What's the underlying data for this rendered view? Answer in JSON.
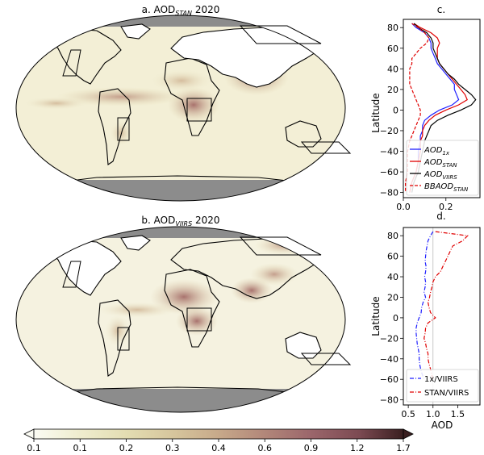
{
  "chart_data": [
    {
      "type": "heatmap",
      "title": "a. AOD",
      "title_sub": "STAN",
      "title_year": "2020",
      "boxes": [
        "North America (west)",
        "South America",
        "Central Africa",
        "Siberia",
        "Australia (south-east)"
      ]
    },
    {
      "type": "heatmap",
      "title": "b. AOD",
      "title_sub": "VIIRS",
      "title_year": "2020",
      "boxes": [
        "North America (west)",
        "South America",
        "Central Africa",
        "Siberia",
        "Australia (south-east)"
      ]
    },
    {
      "type": "line",
      "title": "c.",
      "xlabel": "",
      "ylabel": "Latitude",
      "xlim": [
        0,
        0.36
      ],
      "ylim": [
        -85,
        88
      ],
      "xticks": [
        "0.0",
        "0.2"
      ],
      "xtick_values": [
        0.0,
        0.2
      ],
      "yticks": [
        "80",
        "60",
        "40",
        "20",
        "0",
        "−20",
        "−40",
        "−60",
        "−80"
      ],
      "ytick_values": [
        80,
        60,
        40,
        20,
        0,
        -20,
        -40,
        -60,
        -80
      ],
      "legend_position": "lower-right",
      "series": [
        {
          "name": "AOD",
          "sub": "1x",
          "color": "#1f1fff",
          "dash": "solid",
          "lat": [
            84,
            80,
            75,
            70,
            65,
            60,
            55,
            50,
            45,
            40,
            35,
            30,
            25,
            20,
            15,
            10,
            5,
            0,
            -5,
            -10,
            -15,
            -20,
            -25,
            -30,
            -40,
            -50,
            -60,
            -70,
            -80
          ],
          "values": [
            0.04,
            0.06,
            0.1,
            0.12,
            0.13,
            0.13,
            0.14,
            0.15,
            0.16,
            0.18,
            0.2,
            0.22,
            0.24,
            0.24,
            0.25,
            0.26,
            0.23,
            0.17,
            0.13,
            0.1,
            0.09,
            0.09,
            0.08,
            0.08,
            0.07,
            0.07,
            0.06,
            0.04,
            0.03
          ]
        },
        {
          "name": "AOD",
          "sub": "STAN",
          "color": "#e00000",
          "dash": "solid",
          "lat": [
            84,
            80,
            75,
            70,
            65,
            60,
            55,
            50,
            45,
            40,
            35,
            30,
            25,
            20,
            15,
            10,
            5,
            0,
            -5,
            -10,
            -15,
            -20,
            -25,
            -30,
            -40,
            -50,
            -60,
            -70,
            -80
          ],
          "values": [
            0.05,
            0.08,
            0.13,
            0.16,
            0.17,
            0.16,
            0.16,
            0.16,
            0.17,
            0.19,
            0.21,
            0.23,
            0.25,
            0.27,
            0.29,
            0.3,
            0.26,
            0.2,
            0.15,
            0.12,
            0.1,
            0.09,
            0.09,
            0.08,
            0.08,
            0.07,
            0.06,
            0.04,
            0.03
          ]
        },
        {
          "name": "AOD",
          "sub": "VIIRS",
          "color": "#000000",
          "dash": "solid",
          "lat": [
            84,
            80,
            75,
            70,
            65,
            60,
            55,
            50,
            45,
            40,
            35,
            30,
            25,
            20,
            15,
            10,
            5,
            0,
            -5,
            -10,
            -15,
            -20,
            -25,
            -30,
            -40,
            -50,
            -60,
            -70,
            -80
          ],
          "values": [
            0.05,
            0.07,
            0.11,
            0.13,
            0.14,
            0.14,
            0.15,
            0.16,
            0.17,
            0.19,
            0.21,
            0.24,
            0.26,
            0.29,
            0.32,
            0.34,
            0.32,
            0.27,
            0.21,
            0.16,
            0.13,
            0.12,
            0.11,
            0.1,
            0.09,
            0.08,
            0.07,
            0.05,
            0.04
          ]
        },
        {
          "name": "BBAOD",
          "sub": "STAN",
          "color": "#e00000",
          "dash": "dashed",
          "lat": [
            84,
            80,
            75,
            70,
            65,
            60,
            55,
            50,
            45,
            40,
            35,
            30,
            25,
            20,
            15,
            10,
            5,
            0,
            -5,
            -10,
            -15,
            -20,
            -25,
            -30,
            -40,
            -50,
            -60,
            -70,
            -80
          ],
          "values": [
            0.04,
            0.07,
            0.1,
            0.12,
            0.11,
            0.08,
            0.06,
            0.04,
            0.04,
            0.03,
            0.03,
            0.03,
            0.03,
            0.04,
            0.05,
            0.06,
            0.07,
            0.08,
            0.08,
            0.07,
            0.06,
            0.05,
            0.04,
            0.03,
            0.02,
            0.02,
            0.02,
            0.01,
            0.01
          ]
        }
      ]
    },
    {
      "type": "line",
      "title": "d.",
      "xlabel": "AOD",
      "ylabel": "Latitude",
      "xlim": [
        0.4,
        1.95
      ],
      "ylim": [
        -85,
        88
      ],
      "xticks": [
        "0.5",
        "1.0",
        "1.5"
      ],
      "xtick_values": [
        0.5,
        1.0,
        1.5
      ],
      "yticks": [
        "80",
        "60",
        "40",
        "20",
        "0",
        "−20",
        "−40",
        "−60",
        "−80"
      ],
      "ytick_values": [
        80,
        60,
        40,
        20,
        0,
        -20,
        -40,
        -60,
        -80
      ],
      "reference_line": 1.0,
      "legend_position": "lower-right",
      "series": [
        {
          "name": "1x/VIIRS",
          "color": "#1f1fff",
          "dash": "dashdot",
          "lat": [
            84,
            80,
            75,
            70,
            65,
            60,
            55,
            50,
            45,
            40,
            35,
            30,
            25,
            20,
            15,
            10,
            5,
            0,
            -5,
            -10,
            -15,
            -20,
            -25,
            -30,
            -35,
            -40,
            -45,
            -50,
            -55,
            -60
          ],
          "values": [
            1.0,
            0.95,
            0.9,
            0.88,
            0.86,
            0.85,
            0.84,
            0.86,
            0.85,
            0.83,
            0.85,
            0.84,
            0.82,
            0.85,
            0.8,
            0.77,
            0.76,
            0.72,
            0.68,
            0.66,
            0.66,
            0.67,
            0.68,
            0.7,
            0.72,
            0.72,
            0.73,
            0.75,
            0.78,
            0.82
          ]
        },
        {
          "name": "STAN/VIIRS",
          "color": "#e00000",
          "dash": "dashdot",
          "lat": [
            84,
            80,
            75,
            70,
            65,
            60,
            55,
            50,
            45,
            40,
            35,
            30,
            25,
            20,
            15,
            10,
            5,
            0,
            -5,
            -10,
            -15,
            -20,
            -25,
            -30,
            -35,
            -40,
            -45,
            -50,
            -55,
            -60
          ],
          "values": [
            1.05,
            1.7,
            1.6,
            1.4,
            1.35,
            1.3,
            1.25,
            1.2,
            1.15,
            1.05,
            1.0,
            0.98,
            0.95,
            0.93,
            0.9,
            0.92,
            0.95,
            1.05,
            0.9,
            0.85,
            0.84,
            0.82,
            0.85,
            0.87,
            0.9,
            0.9,
            0.92,
            0.95,
            0.97,
            1.0
          ]
        }
      ]
    },
    {
      "type": "colorbar",
      "label": "AOD",
      "ticks": [
        "0.1",
        "0.1",
        "0.2",
        "0.3",
        "0.4",
        "0.6",
        "0.9",
        "1.2",
        "1.7"
      ],
      "colors": [
        "#fbfbf3",
        "#efedcf",
        "#e3ddb2",
        "#d6c59c",
        "#c7a98a",
        "#b3887a",
        "#9b666b",
        "#7c4a52",
        "#5a3038",
        "#3a1f20"
      ]
    }
  ]
}
